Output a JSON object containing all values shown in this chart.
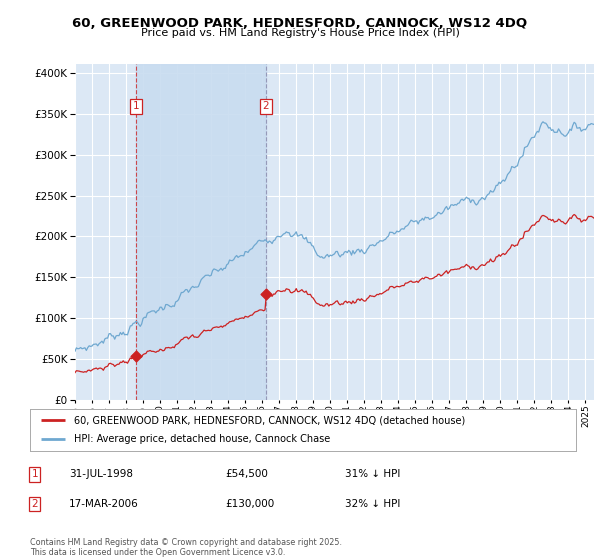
{
  "title1": "60, GREENWOOD PARK, HEDNESFORD, CANNOCK, WS12 4DQ",
  "title2": "Price paid vs. HM Land Registry's House Price Index (HPI)",
  "background_color": "#ffffff",
  "plot_bg_color": "#dce8f5",
  "shade_color": "#c8dcf0",
  "grid_color": "#ffffff",
  "hpi_color": "#6fa8d0",
  "price_color": "#cc2222",
  "sale1_year": 1998.58,
  "sale2_year": 2006.21,
  "sale1_price": 54500,
  "sale2_price": 130000,
  "legend_line1": "60, GREENWOOD PARK, HEDNESFORD, CANNOCK, WS12 4DQ (detached house)",
  "legend_line2": "HPI: Average price, detached house, Cannock Chase",
  "annotation1_label": "1",
  "annotation1_date": "31-JUL-1998",
  "annotation1_price": "£54,500",
  "annotation1_hpi": "31% ↓ HPI",
  "annotation2_label": "2",
  "annotation2_date": "17-MAR-2006",
  "annotation2_price": "£130,000",
  "annotation2_hpi": "32% ↓ HPI",
  "footer": "Contains HM Land Registry data © Crown copyright and database right 2025.\nThis data is licensed under the Open Government Licence v3.0.",
  "ylim_max": 410000,
  "ylim_min": 0,
  "xmin": 1995.0,
  "xmax": 2025.5
}
